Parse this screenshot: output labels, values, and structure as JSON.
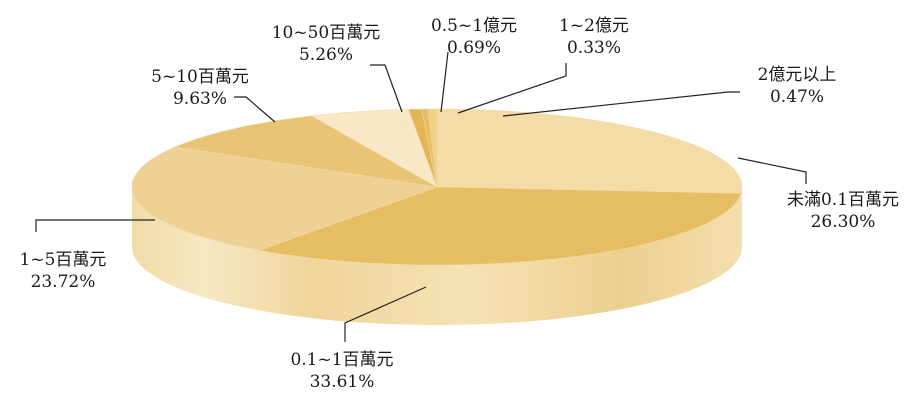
{
  "chart_data": {
    "type": "pie",
    "style": "3d",
    "categories": [
      "未滿0.1百萬元",
      "0.1~1百萬元",
      "1~5百萬元",
      "5~10百萬元",
      "10~50百萬元",
      "0.5~1億元",
      "1~2億元",
      "2億元以上"
    ],
    "values": [
      26.3,
      33.61,
      23.72,
      9.63,
      5.26,
      0.69,
      0.33,
      0.47
    ],
    "value_labels": [
      "26.30%",
      "33.61%",
      "23.72%",
      "9.63%",
      "5.26%",
      "0.69%",
      "0.33%",
      "0.47%"
    ],
    "colors": {
      "base": "#e8c877",
      "light": "#f7e6bd",
      "mid": "#efd49a",
      "dark": "#e3b85c",
      "side": "#ecd293"
    }
  }
}
